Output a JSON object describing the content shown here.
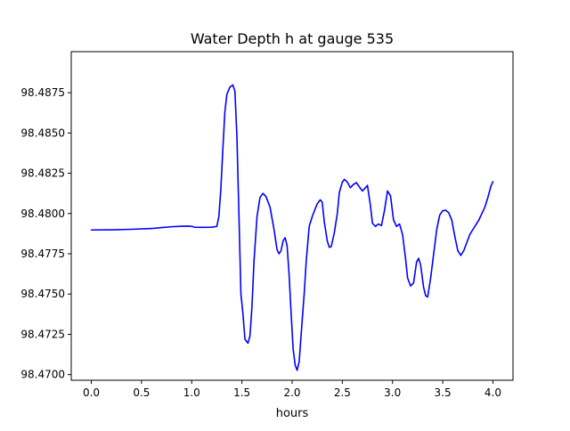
{
  "chart_data": {
    "type": "line",
    "title": "Water Depth h at gauge 535",
    "xlabel": "hours",
    "ylabel": "",
    "xlim": [
      -0.2,
      4.2
    ],
    "ylim": [
      98.46965,
      98.49005
    ],
    "xticks": [
      {
        "value": 0.0,
        "label": "0.0"
      },
      {
        "value": 0.5,
        "label": "0.5"
      },
      {
        "value": 1.0,
        "label": "1.0"
      },
      {
        "value": 1.5,
        "label": "1.5"
      },
      {
        "value": 2.0,
        "label": "2.0"
      },
      {
        "value": 2.5,
        "label": "2.5"
      },
      {
        "value": 3.0,
        "label": "3.0"
      },
      {
        "value": 3.5,
        "label": "3.5"
      },
      {
        "value": 4.0,
        "label": "4.0"
      }
    ],
    "yticks": [
      {
        "value": 98.47,
        "label": "98.4700"
      },
      {
        "value": 98.4725,
        "label": "98.4725"
      },
      {
        "value": 98.475,
        "label": "98.4750"
      },
      {
        "value": 98.4775,
        "label": "98.4775"
      },
      {
        "value": 98.48,
        "label": "98.4800"
      },
      {
        "value": 98.4825,
        "label": "98.4825"
      },
      {
        "value": 98.485,
        "label": "98.4850"
      },
      {
        "value": 98.4875,
        "label": "98.4875"
      }
    ],
    "grid": false,
    "legend": "none",
    "series": [
      {
        "color": "#0000ff",
        "points": [
          [
            0.0,
            98.47898
          ],
          [
            0.2,
            98.47899
          ],
          [
            0.4,
            98.47902
          ],
          [
            0.6,
            98.47907
          ],
          [
            0.7,
            98.47913
          ],
          [
            0.8,
            98.47918
          ],
          [
            0.9,
            98.47921
          ],
          [
            0.97,
            98.47922
          ],
          [
            1.0,
            98.4792
          ],
          [
            1.03,
            98.47915
          ],
          [
            1.1,
            98.47914
          ],
          [
            1.2,
            98.47915
          ],
          [
            1.25,
            98.4792
          ],
          [
            1.27,
            98.4798
          ],
          [
            1.29,
            98.4815
          ],
          [
            1.31,
            98.484
          ],
          [
            1.33,
            98.4863
          ],
          [
            1.35,
            98.4874
          ],
          [
            1.38,
            98.48785
          ],
          [
            1.41,
            98.48798
          ],
          [
            1.43,
            98.4876
          ],
          [
            1.45,
            98.4848
          ],
          [
            1.47,
            98.48
          ],
          [
            1.49,
            98.475
          ],
          [
            1.51,
            98.4738
          ],
          [
            1.53,
            98.4722
          ],
          [
            1.56,
            98.47195
          ],
          [
            1.58,
            98.4724
          ],
          [
            1.6,
            98.4742
          ],
          [
            1.62,
            98.477
          ],
          [
            1.65,
            98.4798
          ],
          [
            1.68,
            98.481
          ],
          [
            1.71,
            98.48125
          ],
          [
            1.74,
            98.48105
          ],
          [
            1.78,
            98.4804
          ],
          [
            1.82,
            98.479
          ],
          [
            1.85,
            98.47775
          ],
          [
            1.87,
            98.4775
          ],
          [
            1.89,
            98.4777
          ],
          [
            1.91,
            98.4783
          ],
          [
            1.93,
            98.4785
          ],
          [
            1.95,
            98.478
          ],
          [
            1.97,
            98.4762
          ],
          [
            1.99,
            98.4738
          ],
          [
            2.01,
            98.4716
          ],
          [
            2.03,
            98.4706
          ],
          [
            2.05,
            98.47027
          ],
          [
            2.07,
            98.4708
          ],
          [
            2.09,
            98.4725
          ],
          [
            2.12,
            98.475
          ],
          [
            2.14,
            98.477
          ],
          [
            2.17,
            98.4792
          ],
          [
            2.2,
            98.4798
          ],
          [
            2.23,
            98.4803
          ],
          [
            2.25,
            98.4806
          ],
          [
            2.28,
            98.48085
          ],
          [
            2.3,
            98.4807
          ],
          [
            2.32,
            98.4795
          ],
          [
            2.35,
            98.4783
          ],
          [
            2.37,
            98.4779
          ],
          [
            2.39,
            98.47795
          ],
          [
            2.42,
            98.4788
          ],
          [
            2.45,
            98.48
          ],
          [
            2.47,
            98.4813
          ],
          [
            2.5,
            98.48195
          ],
          [
            2.52,
            98.48212
          ],
          [
            2.55,
            98.48195
          ],
          [
            2.58,
            98.4816
          ],
          [
            2.61,
            98.4818
          ],
          [
            2.64,
            98.48192
          ],
          [
            2.67,
            98.48165
          ],
          [
            2.7,
            98.4814
          ],
          [
            2.73,
            98.4816
          ],
          [
            2.75,
            98.48175
          ],
          [
            2.78,
            98.4805
          ],
          [
            2.8,
            98.4794
          ],
          [
            2.83,
            98.4792
          ],
          [
            2.86,
            98.47935
          ],
          [
            2.89,
            98.47925
          ],
          [
            2.92,
            98.4802
          ],
          [
            2.95,
            98.4814
          ],
          [
            2.98,
            98.4811
          ],
          [
            3.01,
            98.4796
          ],
          [
            3.04,
            98.4792
          ],
          [
            3.07,
            98.47935
          ],
          [
            3.1,
            98.4787
          ],
          [
            3.13,
            98.4772
          ],
          [
            3.15,
            98.476
          ],
          [
            3.18,
            98.4755
          ],
          [
            3.21,
            98.4757
          ],
          [
            3.24,
            98.477
          ],
          [
            3.26,
            98.47722
          ],
          [
            3.28,
            98.4768
          ],
          [
            3.31,
            98.4754
          ],
          [
            3.33,
            98.4749
          ],
          [
            3.35,
            98.47482
          ],
          [
            3.38,
            98.476
          ],
          [
            3.41,
            98.4775
          ],
          [
            3.44,
            98.479
          ],
          [
            3.47,
            98.4799
          ],
          [
            3.5,
            98.48018
          ],
          [
            3.53,
            98.4802
          ],
          [
            3.56,
            98.48005
          ],
          [
            3.59,
            98.4796
          ],
          [
            3.62,
            98.4786
          ],
          [
            3.65,
            98.4777
          ],
          [
            3.68,
            98.4774
          ],
          [
            3.71,
            98.4777
          ],
          [
            3.74,
            98.4782
          ],
          [
            3.77,
            98.4787
          ],
          [
            3.8,
            98.479
          ],
          [
            3.83,
            98.4793
          ],
          [
            3.86,
            98.4796
          ],
          [
            3.89,
            98.48
          ],
          [
            3.92,
            98.4804
          ],
          [
            3.95,
            98.481
          ],
          [
            3.98,
            98.4817
          ],
          [
            4.0,
            98.48198
          ]
        ]
      }
    ]
  }
}
